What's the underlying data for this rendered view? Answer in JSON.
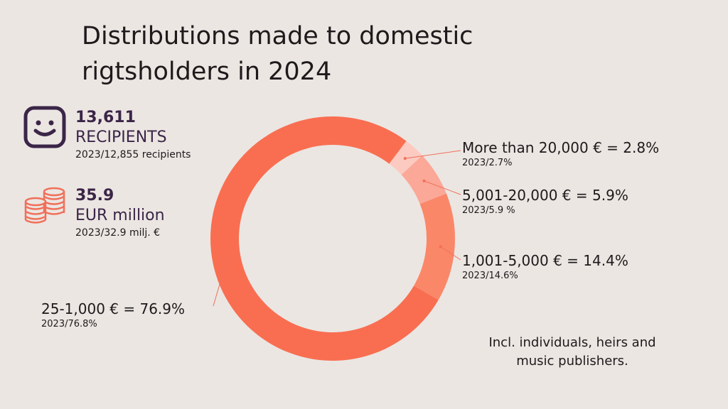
{
  "title": "Distributions made to domestic rigtsholders in 2024",
  "stats": {
    "recipients": {
      "value": "13,611",
      "unit": "RECIPIENTS",
      "prev": "2023/12,855 recipients"
    },
    "amount": {
      "value": "35.9",
      "unit": "EUR million",
      "prev": "2023/32.9 milj. €"
    }
  },
  "note": "Incl. individuals, heirs and music publishers.",
  "colors": {
    "slice_large": "#f96e51",
    "slice_mid": "#fb8769",
    "slice_small": "#fba898",
    "slice_top": "#fccac0",
    "icon_face": "#3b2547",
    "icon_coins": "#f0705a"
  },
  "chart_data": {
    "type": "pie",
    "title": "Distributions made to domestic rigtsholders in 2024",
    "categories": [
      "25-1,000 €",
      "1,001-5,000 €",
      "5,001-20,000 €",
      "More than 20,000 €"
    ],
    "values": [
      76.9,
      14.4,
      5.9,
      2.8
    ],
    "previous": [
      76.8,
      14.6,
      5.9,
      2.7
    ],
    "labels": [
      {
        "main": "25-1,000 € = 76.9%",
        "prev": "2023/76.8%"
      },
      {
        "main": "1,001-5,000 € = 14.4%",
        "prev": "2023/14.6%"
      },
      {
        "main": "5,001-20,000 € = 5.9%",
        "prev": "2023/5.9 %"
      },
      {
        "main": "More than 20,000 € = 2.8%",
        "prev": "2023/2.7%"
      }
    ]
  }
}
